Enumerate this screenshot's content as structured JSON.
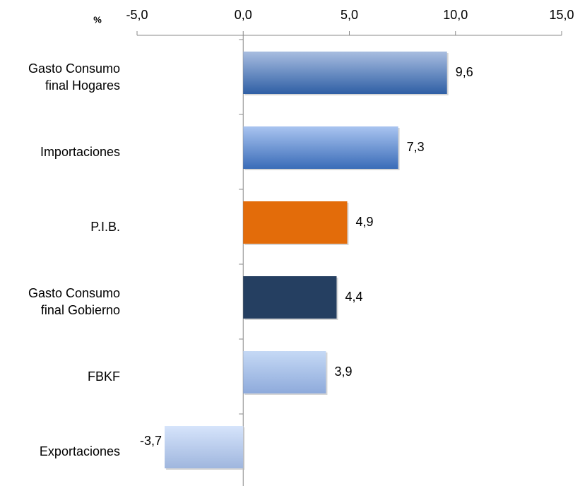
{
  "chart_data": {
    "type": "bar",
    "orientation": "horizontal",
    "axis_label": "%",
    "categories": [
      "Gasto Consumo final Hogares",
      "Importaciones",
      "P.I.B.",
      "Gasto Consumo final Gobierno",
      "FBKF",
      "Exportaciones"
    ],
    "values": [
      9.6,
      7.3,
      4.9,
      4.4,
      3.9,
      -3.7
    ],
    "value_labels": [
      "9,6",
      "7,3",
      "4,9",
      "4,4",
      "3,9",
      "-3,7"
    ],
    "colors": [
      "#2f5fa5",
      "#3a6cb8",
      "#e36c0a",
      "#253f61",
      "#8eaadb",
      "#9fb6de"
    ],
    "top_colors": [
      "#a8bde0",
      "#a9c4f0",
      null,
      null,
      "#c5d9f5",
      "#d6e4fb"
    ],
    "xlim": [
      -5,
      15
    ],
    "xticks": [
      {
        "value": -5,
        "label": "-5,0"
      },
      {
        "value": 0,
        "label": "0,0"
      },
      {
        "value": 5,
        "label": "5,0"
      },
      {
        "value": 10,
        "label": "10,0"
      },
      {
        "value": 15,
        "label": "15,0"
      }
    ],
    "grid": false
  }
}
